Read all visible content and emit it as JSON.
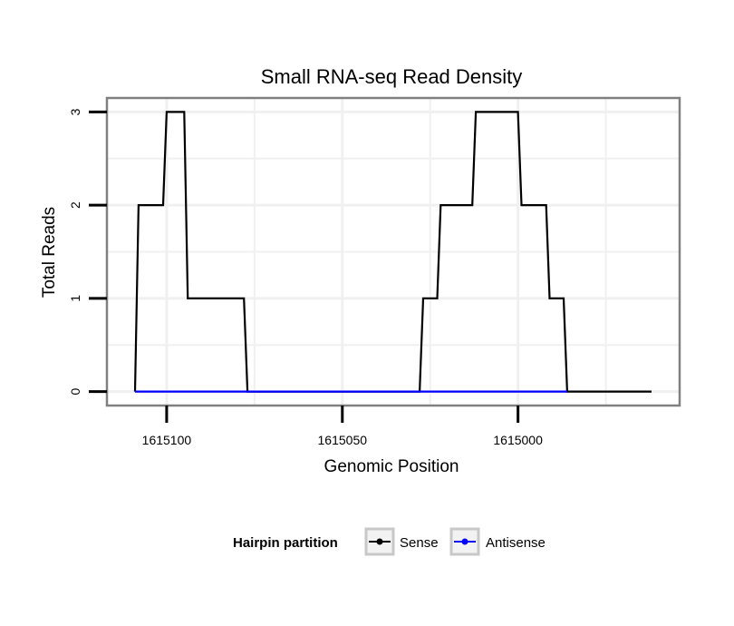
{
  "chart_data": {
    "type": "line",
    "title": "Small RNA-seq Read Density",
    "xlabel": "Genomic Position",
    "ylabel": "Total Reads",
    "x_reversed": true,
    "xlim": [
      1615117,
      1614954
    ],
    "ylim": [
      -0.15,
      3.15
    ],
    "x_ticks": [
      1615100,
      1615050,
      1615000
    ],
    "x_tick_labels": [
      "1615100",
      "1615050",
      "1615000"
    ],
    "y_ticks": [
      0,
      1,
      2,
      3
    ],
    "y_tick_labels": [
      "0",
      "1",
      "2",
      "3"
    ],
    "grid": true,
    "legend": {
      "title": "Hairpin partition",
      "position": "bottom"
    },
    "series": [
      {
        "name": "Sense",
        "color": "#000000",
        "x": [
          1615109,
          1615108,
          1615101,
          1615100,
          1615098,
          1615097,
          1615095,
          1615094,
          1615091,
          1615090,
          1615078,
          1615077,
          1615028,
          1615027,
          1615023,
          1615022,
          1615015,
          1615014,
          1615013,
          1615012,
          1615002,
          1615001,
          1615000,
          1614999,
          1614994,
          1614993,
          1614992,
          1614991,
          1614989,
          1614988,
          1614987,
          1614986,
          1614962
        ],
        "y": [
          0,
          2,
          2,
          3,
          3,
          3,
          3,
          1,
          1,
          1,
          1,
          0,
          0,
          1,
          1,
          2,
          2,
          2,
          2,
          3,
          3,
          3,
          3,
          2,
          2,
          2,
          2,
          1,
          1,
          1,
          1,
          0,
          0
        ]
      },
      {
        "name": "Antisense",
        "color": "#0000ff",
        "x": [
          1615109,
          1615077,
          1615028,
          1614986
        ],
        "y": [
          0,
          0,
          0,
          0
        ]
      }
    ]
  }
}
